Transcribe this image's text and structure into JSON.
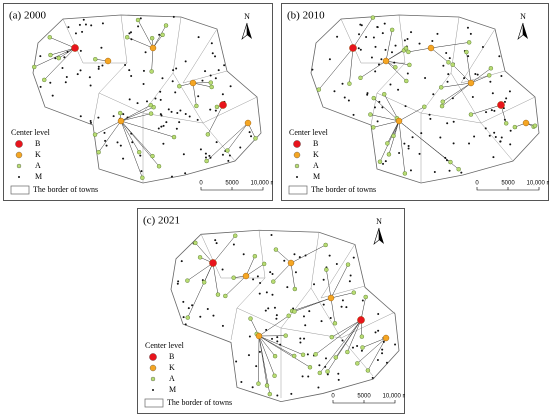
{
  "panels": [
    {
      "title": "(a) 2000",
      "north": "N",
      "legend": {
        "title": "Center level",
        "items": [
          "B",
          "K",
          "A",
          "M"
        ],
        "border": "The border of towns"
      },
      "scale": [
        "0",
        "5000",
        "10,000 m"
      ]
    },
    {
      "title": "(b) 2010",
      "north": "N",
      "legend": {
        "title": "Center level",
        "items": [
          "B",
          "K",
          "A",
          "M"
        ],
        "border": "The border of towns"
      },
      "scale": [
        "0",
        "5000",
        "10,000 m"
      ]
    },
    {
      "title": "(c) 2021",
      "north": "N",
      "legend": {
        "title": "Center level",
        "items": [
          "B",
          "K",
          "A",
          "M"
        ],
        "border": "The border of towns"
      },
      "scale": [
        "0",
        "5000",
        "10,000 m"
      ]
    }
  ]
}
